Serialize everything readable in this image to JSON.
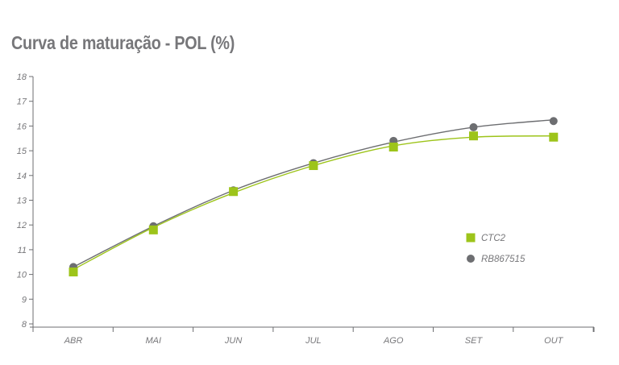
{
  "title": "Curva de maturação - POL (%)",
  "chart_data": {
    "type": "line",
    "title": "Curva de maturação - POL (%)",
    "xlabel": "",
    "ylabel": "",
    "categories": [
      "ABR",
      "MAI",
      "JUN",
      "JUL",
      "AGO",
      "SET",
      "OUT"
    ],
    "ylim": [
      8,
      18
    ],
    "yticks": [
      8,
      9,
      10,
      11,
      12,
      13,
      14,
      15,
      16,
      17,
      18
    ],
    "grid": false,
    "legend_position": "right",
    "series": [
      {
        "name": "CTC2",
        "marker": "square",
        "color": "#9dc41a",
        "values": [
          10.1,
          11.8,
          13.35,
          14.4,
          15.15,
          15.6,
          15.55
        ],
        "trend": [
          10.2,
          11.9,
          13.3,
          14.4,
          15.2,
          15.55,
          15.6
        ]
      },
      {
        "name": "RB867515",
        "marker": "circle",
        "color": "#6d6e71",
        "values": [
          10.3,
          11.95,
          13.4,
          14.5,
          15.4,
          15.95,
          16.2
        ],
        "trend": [
          10.3,
          11.95,
          13.4,
          14.5,
          15.35,
          15.95,
          16.25
        ]
      }
    ]
  }
}
